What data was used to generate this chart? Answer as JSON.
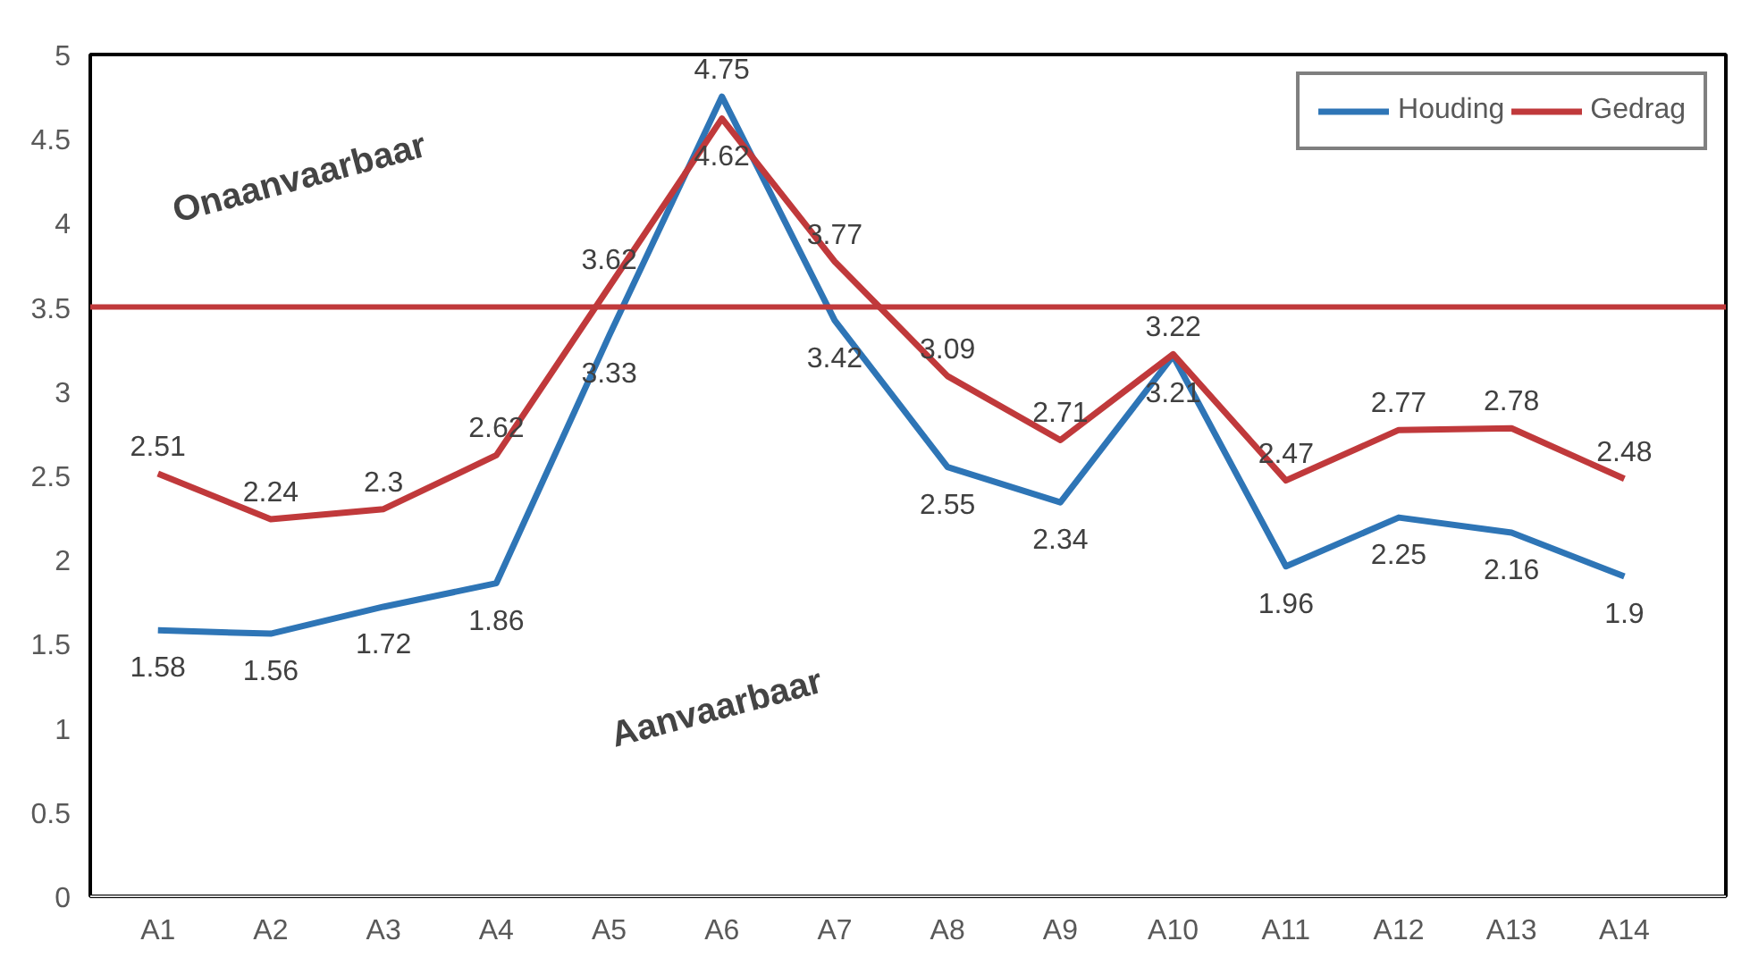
{
  "chart_data": {
    "type": "line",
    "categories": [
      "A1",
      "A2",
      "A3",
      "A4",
      "A5",
      "A6",
      "A7",
      "A8",
      "A9",
      "A10",
      "A11",
      "A12",
      "A13",
      "A14"
    ],
    "series": [
      {
        "name": "Houding",
        "color": "#2e75b6",
        "values": [
          1.58,
          1.56,
          1.72,
          1.86,
          3.33,
          4.75,
          3.42,
          2.55,
          2.34,
          3.21,
          1.96,
          2.25,
          2.16,
          1.9
        ]
      },
      {
        "name": "Gedrag",
        "color": "#c0393b",
        "values": [
          2.51,
          2.24,
          2.3,
          2.62,
          3.62,
          4.62,
          3.77,
          3.09,
          2.71,
          3.22,
          2.47,
          2.77,
          2.78,
          2.48
        ]
      }
    ],
    "ylim": [
      0,
      5
    ],
    "yticks": [
      0,
      0.5,
      1,
      1.5,
      2,
      2.5,
      3,
      3.5,
      4,
      4.5,
      5
    ],
    "ref_lines": [
      {
        "axis": "y",
        "value": 3.5,
        "color": "#c0393b"
      }
    ],
    "annotations": [
      "Onaanvaarbaar",
      "Aanvaarbaar"
    ],
    "data_labels": true,
    "legend": "top right",
    "grid": false,
    "marker": "none",
    "line_style": "solid"
  }
}
